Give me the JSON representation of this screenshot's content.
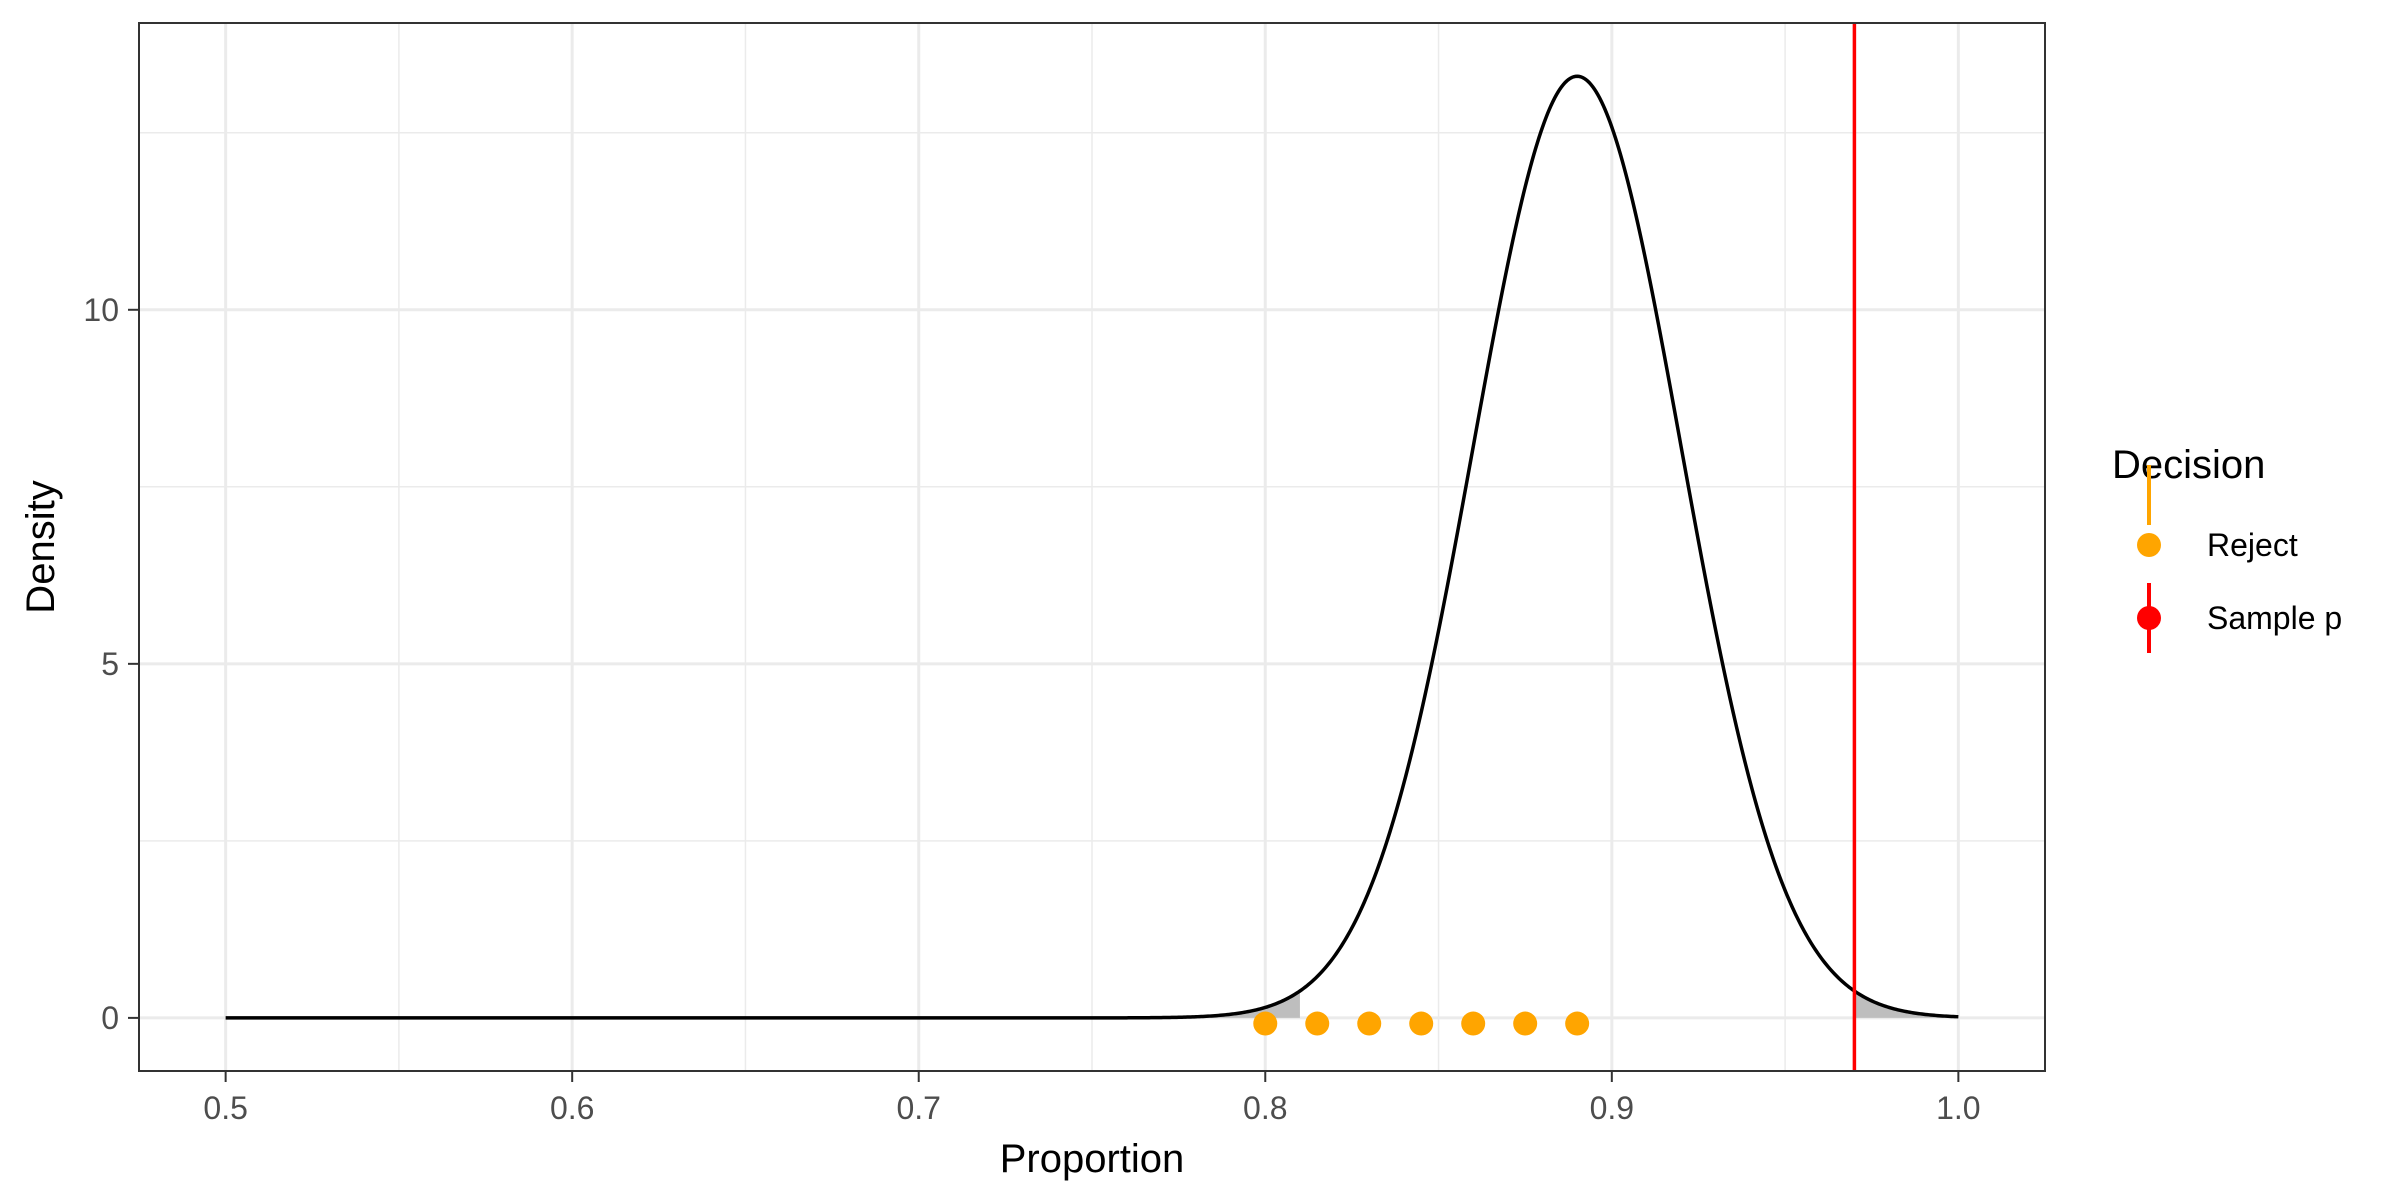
{
  "chart_data": {
    "type": "line",
    "title": "",
    "xlabel": "Proportion",
    "ylabel": "Density",
    "xlim": [
      0.475,
      1.025
    ],
    "ylim": [
      -0.75,
      14.05
    ],
    "x_ticks": [
      0.5,
      0.6,
      0.7,
      0.8,
      0.9,
      1.0
    ],
    "x_tick_labels": [
      "0.5",
      "0.6",
      "0.7",
      "0.8",
      "0.9",
      "1.0"
    ],
    "y_ticks": [
      0,
      5,
      10
    ],
    "y_tick_labels": [
      "0",
      "5",
      "10"
    ],
    "grid": true,
    "density_curve": {
      "distribution": "normal",
      "mean": 0.89,
      "sd": 0.03,
      "x_range": [
        0.5,
        1.0
      ],
      "color": "#000000"
    },
    "shaded_tails": [
      {
        "from": 0.5,
        "to": 0.81
      },
      {
        "from": 0.97,
        "to": 1.0
      }
    ],
    "shade_color": "#bebebe",
    "series": [
      {
        "name": "Reject",
        "type": "points",
        "color": "#FFA500",
        "x": [
          0.8,
          0.815,
          0.83,
          0.845,
          0.86,
          0.875,
          0.89
        ],
        "y": [
          -0.08,
          -0.08,
          -0.08,
          -0.08,
          -0.08,
          -0.08,
          -0.08
        ]
      },
      {
        "name": "Sample p",
        "type": "vline",
        "color": "#FF0000",
        "x": 0.97
      }
    ],
    "legend": {
      "title": "Decision",
      "position": "right",
      "entries": [
        {
          "label": "Reject",
          "color": "#FFA500"
        },
        {
          "label": "Sample p",
          "color": "#FF0000"
        }
      ]
    }
  }
}
